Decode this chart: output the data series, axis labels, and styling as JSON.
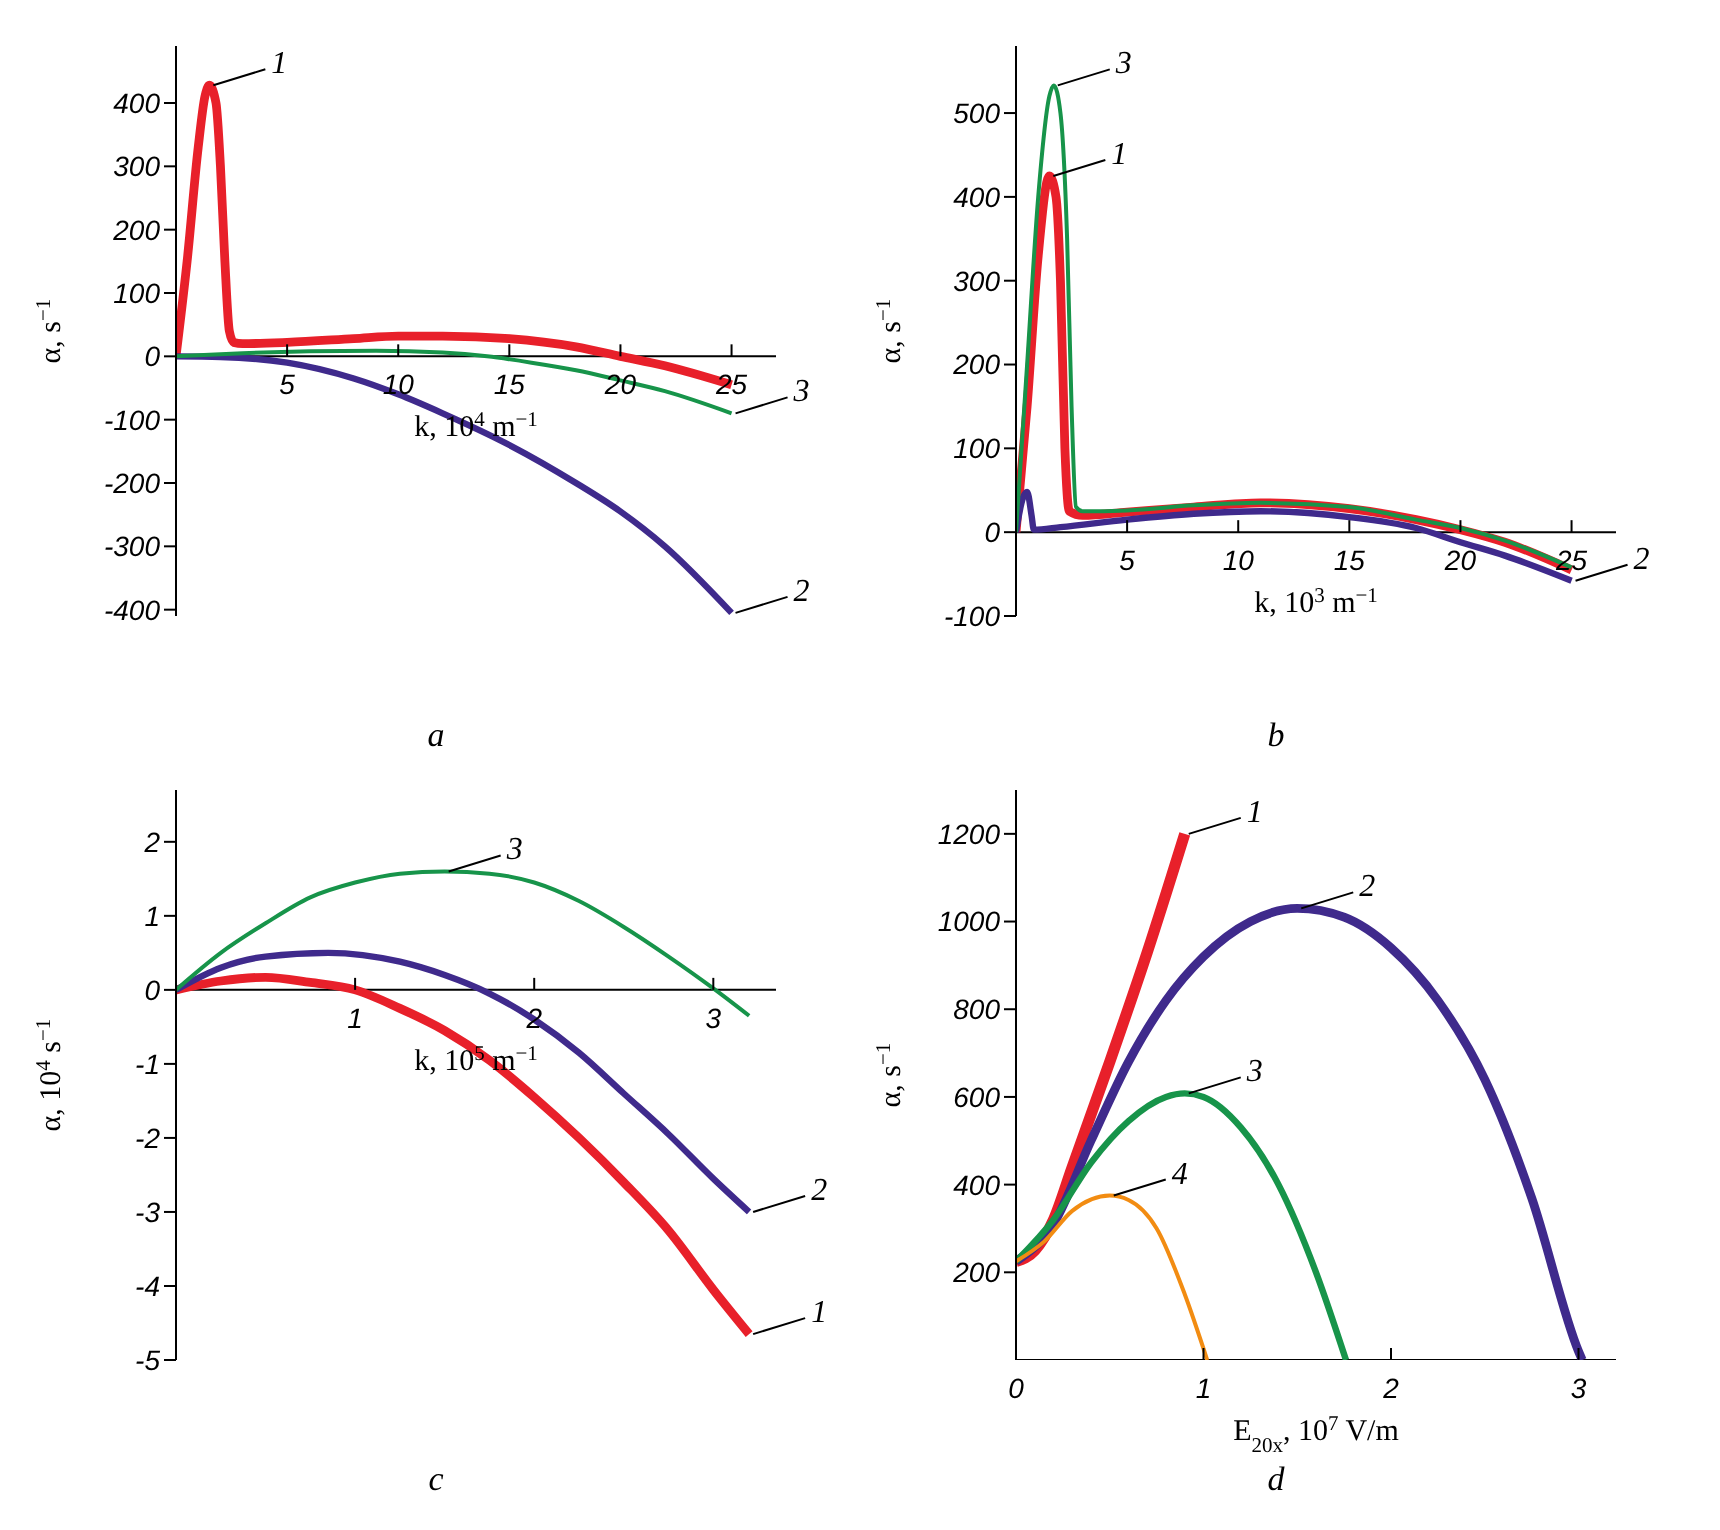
{
  "chart_data": [
    {
      "type": "line",
      "title": "a",
      "xlabel": "k, 10$^{4}$ m$^{−1}$",
      "ylabel": "α, s$^{−1}$",
      "xlim": [
        0,
        27
      ],
      "ylim": [
        -410,
        490
      ],
      "xticks": [
        5,
        10,
        15,
        20,
        25
      ],
      "yticks": [
        -400,
        -300,
        -200,
        -100,
        0,
        100,
        200,
        300,
        400
      ],
      "series": [
        {
          "name": "1",
          "color": "#e8202a",
          "x": [
            0,
            0.5,
            1,
            1.3,
            1.5,
            1.8,
            2,
            2.2,
            2.4,
            2.6,
            3,
            5,
            8,
            10,
            12,
            15,
            18,
            20,
            22,
            25
          ],
          "values": [
            0,
            150,
            330,
            410,
            428,
            400,
            300,
            150,
            40,
            22,
            20,
            22,
            28,
            32,
            32,
            28,
            15,
            0,
            -15,
            -45
          ]
        },
        {
          "name": "2",
          "color": "#3f2a8c",
          "x": [
            0,
            2,
            5,
            8,
            10,
            12,
            15,
            18,
            20,
            22,
            25
          ],
          "values": [
            0,
            -1,
            -10,
            -35,
            -60,
            -90,
            -140,
            -200,
            -245,
            -300,
            -405
          ]
        },
        {
          "name": "3",
          "color": "#17944a",
          "x": [
            0,
            3,
            6,
            9,
            12,
            14,
            16,
            18,
            20,
            22,
            25
          ],
          "values": [
            0,
            5,
            8,
            9,
            6,
            0,
            -10,
            -22,
            -38,
            -55,
            -90
          ]
        }
      ]
    },
    {
      "type": "line",
      "title": "b",
      "xlabel": "k, 10$^{3}$ m$^{−1}$",
      "ylabel": "α, s$^{−1}$",
      "xlim": [
        0,
        27
      ],
      "ylim": [
        -100,
        580
      ],
      "xticks": [
        5,
        10,
        15,
        20,
        25
      ],
      "yticks": [
        -100,
        0,
        100,
        200,
        300,
        400,
        500
      ],
      "series": [
        {
          "name": "1",
          "color": "#e8202a",
          "x": [
            0,
            0.5,
            1,
            1.5,
            1.8,
            2,
            2.2,
            2.4,
            3,
            5,
            8,
            11,
            15,
            18,
            20,
            22,
            25
          ],
          "values": [
            0,
            150,
            330,
            425,
            400,
            300,
            100,
            25,
            20,
            24,
            30,
            35,
            28,
            15,
            3,
            -12,
            -45
          ]
        },
        {
          "name": "2",
          "color": "#3f2a8c",
          "x": [
            0,
            0.3,
            0.5,
            0.7,
            0.8,
            2,
            5,
            8,
            11,
            15,
            18,
            20,
            22,
            25
          ],
          "values": [
            0,
            40,
            48,
            20,
            3,
            6,
            15,
            22,
            25,
            18,
            5,
            -12,
            -28,
            -58
          ]
        },
        {
          "name": "3",
          "color": "#17944a",
          "x": [
            0,
            0.5,
            1,
            1.5,
            1.7,
            2,
            2.3,
            2.5,
            2.7,
            3,
            5,
            8,
            11,
            15,
            18,
            20,
            22,
            25
          ],
          "values": [
            0,
            200,
            400,
            520,
            533,
            500,
            350,
            150,
            30,
            25,
            26,
            32,
            35,
            30,
            15,
            5,
            -10,
            -42
          ]
        }
      ]
    },
    {
      "type": "line",
      "title": "c",
      "xlabel": "k, 10$^{5}$ m$^{−1}$",
      "ylabel": "α, 10$^{4}$ s$^{−1}$",
      "xlim": [
        0,
        3.35
      ],
      "ylim": [
        -5,
        2.7
      ],
      "xticks": [
        1,
        2,
        3
      ],
      "yticks": [
        -5,
        -4,
        -3,
        -2,
        -1,
        0,
        1,
        2
      ],
      "series": [
        {
          "name": "1",
          "color": "#e8202a",
          "x": [
            0,
            0.25,
            0.5,
            0.75,
            1,
            1.25,
            1.5,
            1.75,
            2,
            2.25,
            2.5,
            2.75,
            3,
            3.2
          ],
          "values": [
            0,
            0.12,
            0.17,
            0.1,
            0,
            -0.25,
            -0.55,
            -0.95,
            -1.45,
            -2.0,
            -2.6,
            -3.25,
            -4.05,
            -4.65
          ]
        },
        {
          "name": "2",
          "color": "#3f2a8c",
          "x": [
            0,
            0.25,
            0.5,
            0.85,
            1.25,
            1.5,
            1.75,
            2,
            2.25,
            2.5,
            2.75,
            3,
            3.2
          ],
          "values": [
            0,
            0.3,
            0.45,
            0.5,
            0.38,
            0.2,
            -0.05,
            -0.4,
            -0.85,
            -1.4,
            -1.95,
            -2.55,
            -3.0
          ]
        },
        {
          "name": "3",
          "color": "#17944a",
          "x": [
            0,
            0.25,
            0.5,
            0.75,
            1,
            1.25,
            1.5,
            1.75,
            2,
            2.25,
            2.5,
            2.75,
            3,
            3.2
          ],
          "values": [
            0,
            0.5,
            0.9,
            1.25,
            1.45,
            1.57,
            1.6,
            1.57,
            1.45,
            1.2,
            0.85,
            0.45,
            0.02,
            -0.35
          ]
        }
      ]
    },
    {
      "type": "line",
      "title": "d",
      "xlabel": "E$_{20x}$, 10$^{7}$ V/m",
      "ylabel": "α, s$^{−1}$",
      "xlim": [
        0,
        3.2
      ],
      "ylim": [
        0,
        1300
      ],
      "xticks": [
        0,
        1,
        2,
        3
      ],
      "yticks": [
        200,
        400,
        600,
        800,
        1000,
        1200
      ],
      "series": [
        {
          "name": "1",
          "color": "#e8202a",
          "x": [
            0,
            0.1,
            0.2,
            0.3,
            0.5,
            0.7,
            0.9
          ],
          "values": [
            225,
            250,
            320,
            440,
            680,
            930,
            1200
          ]
        },
        {
          "name": "2",
          "color": "#3f2a8c",
          "x": [
            0,
            0.2,
            0.4,
            0.6,
            0.8,
            1,
            1.25,
            1.5,
            1.75,
            2,
            2.25,
            2.5,
            2.75,
            3.0,
            3.02
          ],
          "values": [
            225,
            310,
            500,
            680,
            820,
            920,
            1000,
            1030,
            1010,
            940,
            820,
            640,
            370,
            20,
            0
          ]
        },
        {
          "name": "3",
          "color": "#17944a",
          "x": [
            0,
            0.2,
            0.4,
            0.6,
            0.8,
            0.9,
            1,
            1.2,
            1.4,
            1.6,
            1.76
          ],
          "values": [
            225,
            320,
            450,
            545,
            600,
            608,
            600,
            530,
            400,
            200,
            0
          ]
        },
        {
          "name": "4",
          "color": "#f28c12",
          "x": [
            0,
            0.15,
            0.3,
            0.5,
            0.6,
            0.75,
            0.9,
            1.02
          ],
          "values": [
            225,
            270,
            340,
            375,
            365,
            300,
            150,
            0
          ]
        }
      ]
    }
  ]
}
